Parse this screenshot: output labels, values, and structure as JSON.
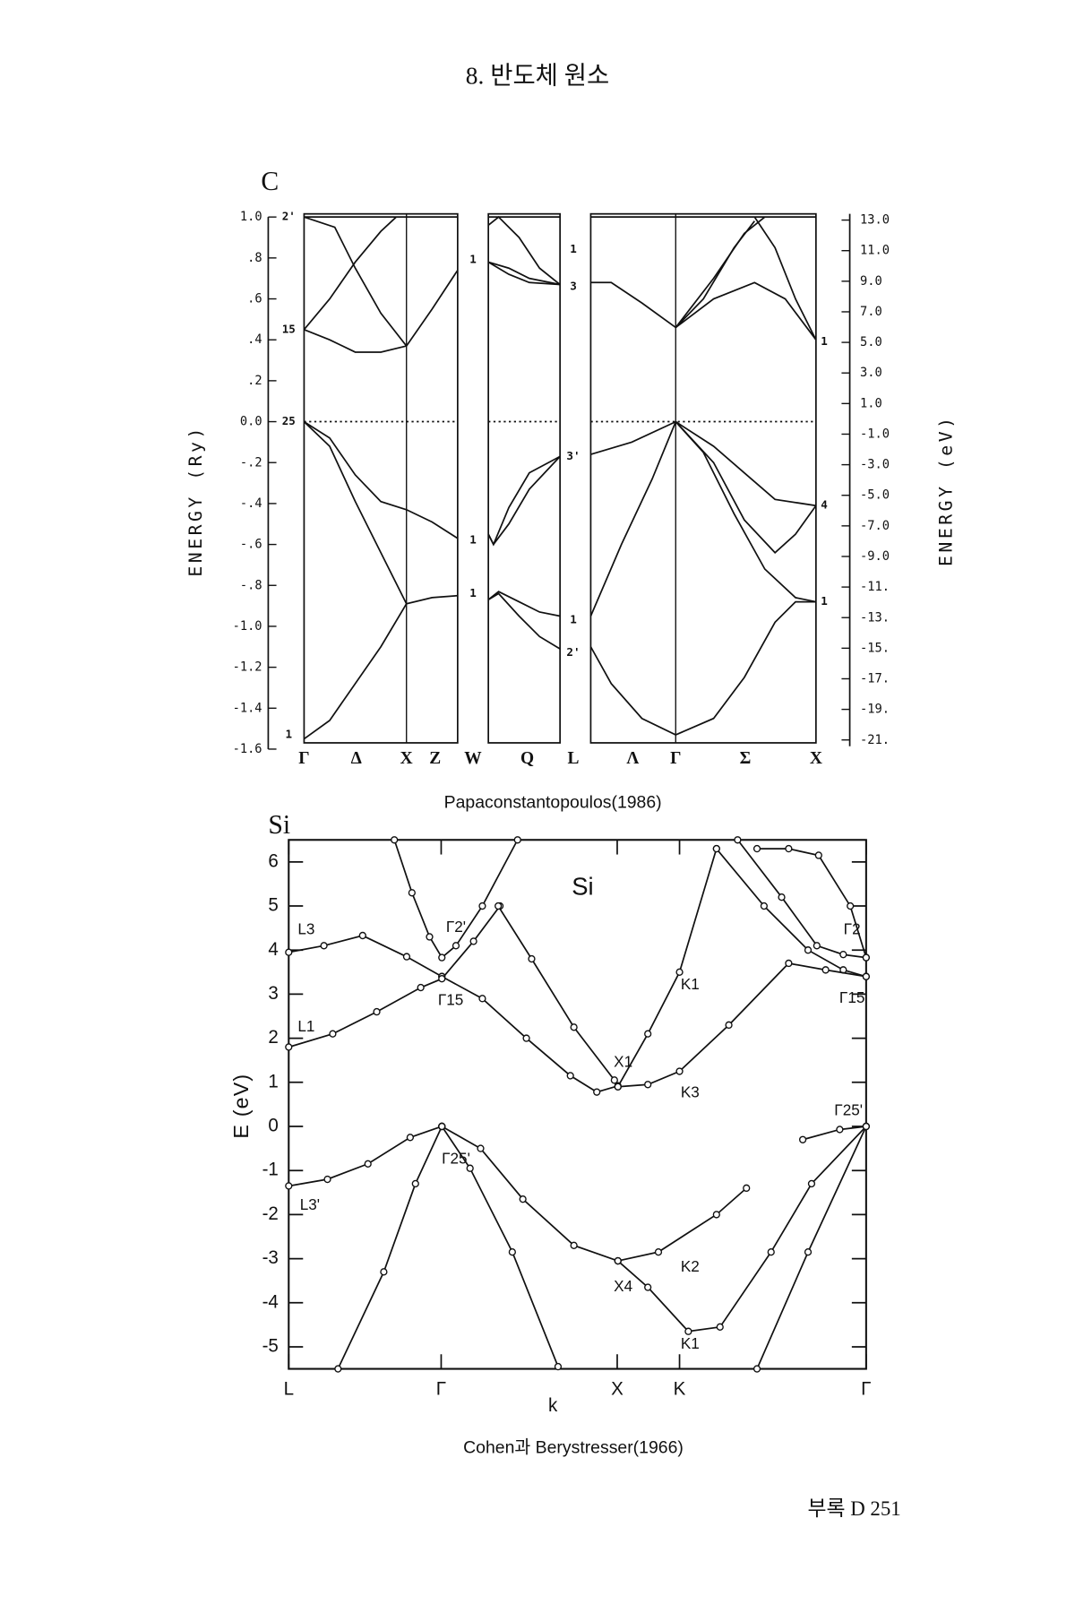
{
  "header": {
    "title": "8. 반도체 원소"
  },
  "chart_data": [
    {
      "type": "line",
      "title": "C",
      "ylabel": "ENERGY (Ry)",
      "y2label": "ENERGY (eV)",
      "caption": "Papaconstantopoulos(1986)",
      "xlim": [
        0,
        5
      ],
      "xticks": [
        {
          "value": 0,
          "label": "Γ"
        },
        {
          "value": 0.51,
          "label": "Δ"
        },
        {
          "value": 1.0,
          "label": "X"
        },
        {
          "value": 1.28,
          "label": "Z"
        },
        {
          "value": 1.65,
          "label": "W"
        },
        {
          "value": 2.18,
          "label": "Q"
        },
        {
          "value": 2.63,
          "label": "L"
        },
        {
          "value": 3.21,
          "label": "Λ"
        },
        {
          "value": 3.63,
          "label": "Γ"
        },
        {
          "value": 4.31,
          "label": "Σ"
        },
        {
          "value": 5.0,
          "label": "X"
        }
      ],
      "ylim": [
        -1.6,
        1.0
      ],
      "yticks": [
        {
          "value": 1.0,
          "label": "1.0"
        },
        {
          "value": 0.8,
          "label": ".8"
        },
        {
          "value": 0.6,
          "label": ".6"
        },
        {
          "value": 0.4,
          "label": ".4"
        },
        {
          "value": 0.2,
          "label": ".2"
        },
        {
          "value": 0,
          "label": "0.0"
        },
        {
          "value": -0.2,
          "label": "-.2"
        },
        {
          "value": -0.4,
          "label": "-.4"
        },
        {
          "value": -0.6,
          "label": "-.6"
        },
        {
          "value": -0.8,
          "label": "-.8"
        },
        {
          "value": -1.0,
          "label": "-1.0"
        },
        {
          "value": -1.2,
          "label": "-1.2"
        },
        {
          "value": -1.4,
          "label": "-1.4"
        },
        {
          "value": -1.6,
          "label": "-1.6"
        }
      ],
      "y2lim": [
        -21.6,
        13.2
      ],
      "y2ticks": [
        {
          "value": 13,
          "label": "13.0"
        },
        {
          "value": 11,
          "label": "11.0"
        },
        {
          "value": 9,
          "label": "9.0"
        },
        {
          "value": 7,
          "label": "7.0"
        },
        {
          "value": 5,
          "label": "5.0"
        },
        {
          "value": 3,
          "label": "3.0"
        },
        {
          "value": 1,
          "label": "1.0"
        },
        {
          "value": -1,
          "label": "-1.0"
        },
        {
          "value": -3,
          "label": "-3.0"
        },
        {
          "value": -5,
          "label": "-5.0"
        },
        {
          "value": -7,
          "label": "-7.0"
        },
        {
          "value": -9,
          "label": "-9.0"
        },
        {
          "value": -11,
          "label": "-11."
        },
        {
          "value": -13,
          "label": "-13."
        },
        {
          "value": -15,
          "label": "-15."
        },
        {
          "value": -17,
          "label": "-17."
        },
        {
          "value": -19,
          "label": "-19."
        },
        {
          "value": -21,
          "label": "-21."
        }
      ],
      "fermi_dotted": true,
      "markers": false,
      "series": [
        {
          "color": "#111",
          "x": [
            0,
            0.25,
            0.5,
            0.75,
            1.0,
            1.25,
            1.5
          ],
          "values": [
            -1.55,
            -1.46,
            -1.28,
            -1.1,
            -0.89,
            -0.86,
            -0.85
          ]
        },
        {
          "color": "#111",
          "x": [
            0,
            0.25,
            0.5,
            0.75,
            1.0,
            1.25,
            1.5
          ],
          "values": [
            0,
            -0.08,
            -0.26,
            -0.39,
            -0.43,
            -0.49,
            -0.57
          ]
        },
        {
          "color": "#111",
          "x": [
            0,
            0.25,
            0.5,
            0.75,
            1.0
          ],
          "values": [
            0,
            -0.12,
            -0.39,
            -0.64,
            -0.89
          ]
        },
        {
          "color": "#111",
          "x": [
            0,
            0.25,
            0.5,
            0.75,
            1.0
          ],
          "values": [
            0.45,
            0.4,
            0.34,
            0.34,
            0.37
          ]
        },
        {
          "color": "#111",
          "x": [
            0,
            0.25,
            0.5,
            0.75,
            0.9
          ],
          "values": [
            0.45,
            0.6,
            0.78,
            0.93,
            1.0
          ]
        },
        {
          "color": "#111",
          "x": [
            0,
            0.3,
            0.5,
            0.75,
            1.0
          ],
          "values": [
            1.0,
            0.95,
            0.75,
            0.53,
            0.37
          ]
        },
        {
          "color": "#111",
          "x": [
            1.0,
            1.25,
            1.5
          ],
          "values": [
            0.37,
            0.55,
            0.74
          ]
        },
        {
          "color": "#111",
          "x": [
            0,
            1.5
          ],
          "values": [
            1.0,
            1.0
          ]
        },
        {
          "color": "#111",
          "x": [
            1.8,
            1.9,
            2.1,
            2.3,
            2.5
          ],
          "values": [
            -0.87,
            -0.83,
            -0.88,
            -0.93,
            -0.95
          ]
        },
        {
          "color": "#111",
          "x": [
            1.8,
            1.9,
            2.1,
            2.3,
            2.5
          ],
          "values": [
            -0.87,
            -0.84,
            -0.95,
            -1.05,
            -1.11
          ]
        },
        {
          "color": "#111",
          "x": [
            1.8,
            1.85,
            2.0,
            2.2,
            2.5
          ],
          "values": [
            -0.55,
            -0.6,
            -0.5,
            -0.33,
            -0.17
          ]
        },
        {
          "color": "#111",
          "x": [
            1.8,
            1.85,
            2.0,
            2.2,
            2.5
          ],
          "values": [
            -0.55,
            -0.6,
            -0.42,
            -0.25,
            -0.17
          ]
        },
        {
          "color": "#111",
          "x": [
            1.8,
            2.0,
            2.2,
            2.5
          ],
          "values": [
            0.78,
            0.72,
            0.68,
            0.67
          ]
        },
        {
          "color": "#111",
          "x": [
            1.8,
            2.0,
            2.2,
            2.5
          ],
          "values": [
            0.78,
            0.75,
            0.7,
            0.67
          ]
        },
        {
          "color": "#111",
          "x": [
            1.8,
            1.9,
            2.1,
            2.3,
            2.5
          ],
          "values": [
            0.96,
            1.0,
            0.9,
            0.75,
            0.67
          ]
        },
        {
          "color": "#111",
          "x": [
            1.8,
            2.5
          ],
          "values": [
            1.0,
            1.0
          ]
        },
        {
          "color": "#111",
          "x": [
            2.8,
            3.0,
            3.3,
            3.63,
            4.0,
            4.3,
            4.6,
            4.8,
            5.0
          ],
          "values": [
            -1.1,
            -1.28,
            -1.45,
            -1.53,
            -1.45,
            -1.25,
            -0.98,
            -0.88,
            -0.88
          ]
        },
        {
          "color": "#111",
          "x": [
            2.8,
            3.1,
            3.4,
            3.63
          ],
          "values": [
            -0.95,
            -0.6,
            -0.28,
            0
          ]
        },
        {
          "color": "#111",
          "x": [
            2.8,
            3.2,
            3.63
          ],
          "values": [
            -0.16,
            -0.1,
            0
          ]
        },
        {
          "color": "#111",
          "x": [
            3.63,
            4.0,
            4.3,
            4.6,
            5.0
          ],
          "values": [
            0,
            -0.12,
            -0.25,
            -0.38,
            -0.41
          ]
        },
        {
          "color": "#111",
          "x": [
            3.63,
            4.0,
            4.3,
            4.6,
            4.8,
            5.0
          ],
          "values": [
            0,
            -0.2,
            -0.48,
            -0.64,
            -0.55,
            -0.41
          ]
        },
        {
          "color": "#111",
          "x": [
            3.63,
            3.9,
            4.2,
            4.5,
            4.8,
            5.0
          ],
          "values": [
            0,
            -0.15,
            -0.45,
            -0.72,
            -0.86,
            -0.88
          ]
        },
        {
          "color": "#111",
          "x": [
            2.8,
            3.0,
            3.3,
            3.63
          ],
          "values": [
            0.68,
            0.68,
            0.58,
            0.46
          ]
        },
        {
          "color": "#111",
          "x": [
            3.63,
            4.0,
            4.4,
            4.7,
            5.0
          ],
          "values": [
            0.46,
            0.6,
            0.68,
            0.6,
            0.4
          ]
        },
        {
          "color": "#111",
          "x": [
            3.63,
            4.0,
            4.3,
            4.5
          ],
          "values": [
            0.46,
            0.7,
            0.92,
            1.0
          ]
        },
        {
          "color": "#111",
          "x": [
            3.63,
            3.9,
            4.2,
            4.4
          ],
          "values": [
            0.46,
            0.6,
            0.85,
            0.98
          ]
        },
        {
          "color": "#111",
          "x": [
            4.4,
            4.6,
            4.8,
            5.0
          ],
          "values": [
            1.0,
            0.85,
            0.6,
            0.4
          ]
        },
        {
          "color": "#111",
          "x": [
            2.8,
            5.0
          ],
          "values": [
            1.0,
            1.0
          ]
        }
      ],
      "annotations": [
        {
          "text": "2'",
          "x": -0.15,
          "y": 1.0
        },
        {
          "text": "15",
          "x": -0.15,
          "y": 0.45
        },
        {
          "text": "25",
          "x": -0.15,
          "y": 0.0
        },
        {
          "text": "1",
          "x": -0.15,
          "y": -1.53
        },
        {
          "text": "1",
          "x": 1.65,
          "y": 0.79
        },
        {
          "text": "1",
          "x": 1.65,
          "y": -0.58
        },
        {
          "text": "1",
          "x": 1.65,
          "y": -0.84
        },
        {
          "text": "1",
          "x": 2.63,
          "y": 0.84
        },
        {
          "text": "3",
          "x": 2.63,
          "y": 0.66
        },
        {
          "text": "3'",
          "x": 2.63,
          "y": -0.17
        },
        {
          "text": "1",
          "x": 2.63,
          "y": -0.97
        },
        {
          "text": "2'",
          "x": 2.63,
          "y": -1.13
        },
        {
          "text": "1",
          "x": 5.08,
          "y": 0.39
        },
        {
          "text": "4",
          "x": 5.08,
          "y": -0.41
        },
        {
          "text": "1",
          "x": 5.08,
          "y": -0.88
        }
      ]
    },
    {
      "type": "line",
      "title": "Si",
      "xlabel": "k",
      "ylabel": "E (eV)",
      "caption": "Cohen과 Berystresser(1966)",
      "xlim": [
        0,
        3.28
      ],
      "xticks": [
        {
          "value": 0,
          "label": "L"
        },
        {
          "value": 0.866,
          "label": "Γ"
        },
        {
          "value": 1.866,
          "label": "X"
        },
        {
          "value": 2.22,
          "label": "K"
        },
        {
          "value": 3.28,
          "label": "Γ"
        }
      ],
      "ylim": [
        -5.5,
        6.5
      ],
      "yticks": [
        6,
        5,
        4,
        3,
        2,
        1,
        0,
        -1,
        -2,
        -3,
        -4,
        -5
      ],
      "markers": true,
      "series": [
        {
          "color": "#111",
          "x": [
            0,
            0.2,
            0.42,
            0.67,
            0.87
          ],
          "values": [
            3.95,
            4.1,
            4.33,
            3.85,
            3.4
          ]
        },
        {
          "color": "#111",
          "x": [
            0.87,
            1.1,
            1.35,
            1.6,
            1.75,
            1.87
          ],
          "values": [
            3.4,
            2.9,
            2.0,
            1.15,
            0.78,
            0.92
          ]
        },
        {
          "color": "#111",
          "x": [
            0,
            0.25,
            0.5,
            0.75,
            0.87,
            1.05,
            1.2
          ],
          "values": [
            1.8,
            2.1,
            2.6,
            3.15,
            3.35,
            4.2,
            5.0
          ]
        },
        {
          "color": "#111",
          "x": [
            0.6,
            0.7,
            0.8,
            0.87,
            0.95,
            1.1,
            1.3
          ],
          "values": [
            6.5,
            5.3,
            4.3,
            3.83,
            4.1,
            5.0,
            6.5
          ]
        },
        {
          "color": "#111",
          "x": [
            1.19,
            1.38,
            1.62,
            1.85,
            1.87,
            2.04,
            2.22,
            2.43
          ],
          "values": [
            5.0,
            3.8,
            2.25,
            1.05,
            0.9,
            2.1,
            3.5,
            6.3
          ]
        },
        {
          "color": "#111",
          "x": [
            2.43,
            2.7,
            2.95,
            3.15,
            3.28
          ],
          "values": [
            6.3,
            5.0,
            4.0,
            3.55,
            3.4
          ]
        },
        {
          "color": "#111",
          "x": [
            2.55,
            2.8,
            3.0,
            3.15,
            3.28
          ],
          "values": [
            6.5,
            5.2,
            4.1,
            3.9,
            3.83
          ]
        },
        {
          "color": "#111",
          "x": [
            2.66,
            2.84,
            3.01,
            3.19,
            3.28
          ],
          "values": [
            6.3,
            6.3,
            6.15,
            5.0,
            3.83
          ]
        },
        {
          "color": "#111",
          "x": [
            1.87,
            2.04,
            2.22,
            2.5,
            2.84,
            3.05,
            3.28
          ],
          "values": [
            0.9,
            0.95,
            1.25,
            2.3,
            3.7,
            3.55,
            3.4
          ]
        },
        {
          "color": "#111",
          "x": [
            0,
            0.22,
            0.45,
            0.69,
            0.87
          ],
          "values": [
            -1.35,
            -1.2,
            -0.85,
            -0.25,
            0
          ]
        },
        {
          "color": "#111",
          "x": [
            0.87,
            1.09,
            1.33,
            1.62,
            1.87
          ],
          "values": [
            0,
            -0.5,
            -1.65,
            -2.7,
            -3.05
          ]
        },
        {
          "color": "#111",
          "x": [
            1.87,
            2.1,
            2.43,
            2.6
          ],
          "values": [
            -3.05,
            -2.85,
            -2.0,
            -1.4
          ]
        },
        {
          "color": "#111",
          "x": [
            1.87,
            2.04,
            2.27,
            2.45,
            2.74,
            2.97,
            3.28
          ],
          "values": [
            -3.05,
            -3.65,
            -4.65,
            -4.55,
            -2.85,
            -1.3,
            0
          ]
        },
        {
          "color": "#111",
          "x": [
            0.87,
            1.03,
            1.27,
            1.53
          ],
          "values": [
            0,
            -0.95,
            -2.85,
            -5.45
          ]
        },
        {
          "color": "#111",
          "x": [
            0.28,
            0.54,
            0.72,
            0.87
          ],
          "values": [
            -5.5,
            -3.3,
            -1.3,
            0
          ]
        },
        {
          "color": "#111",
          "x": [
            2.66,
            2.95,
            3.28
          ],
          "values": [
            -5.5,
            -2.85,
            0
          ]
        },
        {
          "color": "#111",
          "x": [
            2.92,
            3.13,
            3.28
          ],
          "values": [
            -0.3,
            -0.07,
            0
          ]
        }
      ],
      "annotations": [
        {
          "text": "Si",
          "x": 1.67,
          "y": 5.4
        },
        {
          "text": "L3",
          "x": 0.1,
          "y": 4.45
        },
        {
          "text": "L1",
          "x": 0.1,
          "y": 2.25
        },
        {
          "text": "L3'",
          "x": 0.12,
          "y": -1.8
        },
        {
          "text": "Γ2'",
          "x": 0.95,
          "y": 4.5
        },
        {
          "text": "Γ15",
          "x": 0.92,
          "y": 2.85
        },
        {
          "text": "Γ25'",
          "x": 0.95,
          "y": -0.75
        },
        {
          "text": "X1",
          "x": 1.9,
          "y": 1.45
        },
        {
          "text": "K1",
          "x": 2.28,
          "y": 3.2
        },
        {
          "text": "K3",
          "x": 2.28,
          "y": 0.75
        },
        {
          "text": "Γ2",
          "x": 3.2,
          "y": 4.45
        },
        {
          "text": "Γ15",
          "x": 3.2,
          "y": 2.9
        },
        {
          "text": "Γ25'",
          "x": 3.18,
          "y": 0.35
        },
        {
          "text": "K2",
          "x": 2.28,
          "y": -3.2
        },
        {
          "text": "X4",
          "x": 1.9,
          "y": -3.65
        },
        {
          "text": "K1",
          "x": 2.28,
          "y": -4.95
        }
      ]
    }
  ],
  "footer": {
    "text": "부록 D 251"
  }
}
